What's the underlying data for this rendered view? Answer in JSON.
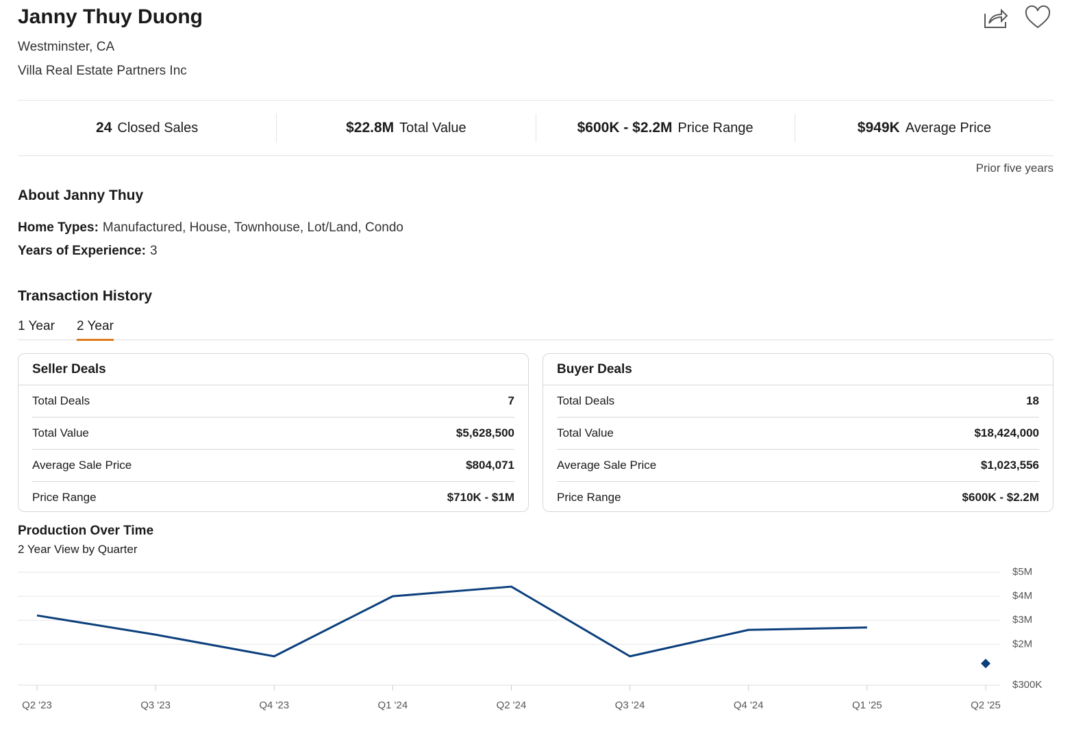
{
  "header": {
    "name": "Janny Thuy Duong",
    "location": "Westminster, CA",
    "brokerage": "Villa Real Estate Partners Inc"
  },
  "stats": [
    {
      "value": "24",
      "label": "Closed Sales"
    },
    {
      "value": "$22.8M",
      "label": "Total Value"
    },
    {
      "value": "$600K - $2.2M",
      "label": "Price Range"
    },
    {
      "value": "$949K",
      "label": "Average Price"
    }
  ],
  "stats_note": "Prior five years",
  "about": {
    "title": "About Janny Thuy",
    "home_types_label": "Home Types:",
    "home_types": "Manufactured, House, Townhouse, Lot/Land, Condo",
    "experience_label": "Years of Experience:",
    "experience": "3"
  },
  "transactions": {
    "title": "Transaction History",
    "tabs": [
      "1 Year",
      "2 Year"
    ],
    "active_tab": 1,
    "tables": [
      {
        "title": "Seller Deals",
        "rows": [
          [
            "Total Deals",
            "7"
          ],
          [
            "Total Value",
            "$5,628,500"
          ],
          [
            "Average Sale Price",
            "$804,071"
          ],
          [
            "Price Range",
            "$710K - $1M"
          ]
        ]
      },
      {
        "title": "Buyer Deals",
        "rows": [
          [
            "Total Deals",
            "18"
          ],
          [
            "Total Value",
            "$18,424,000"
          ],
          [
            "Average Sale Price",
            "$1,023,556"
          ],
          [
            "Price Range",
            "$600K - $2.2M"
          ]
        ]
      }
    ]
  },
  "chart_data": {
    "type": "line",
    "title": "Production Over Time",
    "subtitle": "2 Year View by Quarter",
    "categories": [
      "Q2 '23",
      "Q3 '23",
      "Q4 '23",
      "Q1 '24",
      "Q2 '24",
      "Q3 '24",
      "Q4 '24",
      "Q1 '25",
      "Q2 '25"
    ],
    "series": [
      {
        "color": "#0b3f7c",
        "marker": "none",
        "values": [
          3200000,
          2400000,
          1500000,
          4000000,
          4400000,
          1500000,
          2600000,
          2700000,
          null
        ]
      },
      {
        "color": "#0b3f7c",
        "marker": "diamond",
        "values": [
          null,
          null,
          null,
          null,
          null,
          null,
          null,
          null,
          1200000
        ]
      }
    ],
    "ylim": [
      300000,
      5000000
    ],
    "yticks": [
      {
        "value": 300000,
        "label": "$300K"
      },
      {
        "value": 2000000,
        "label": "$2M"
      },
      {
        "value": 3000000,
        "label": "$3M"
      },
      {
        "value": 4000000,
        "label": "$4M"
      },
      {
        "value": 5000000,
        "label": "$5M"
      }
    ],
    "grid": true
  }
}
